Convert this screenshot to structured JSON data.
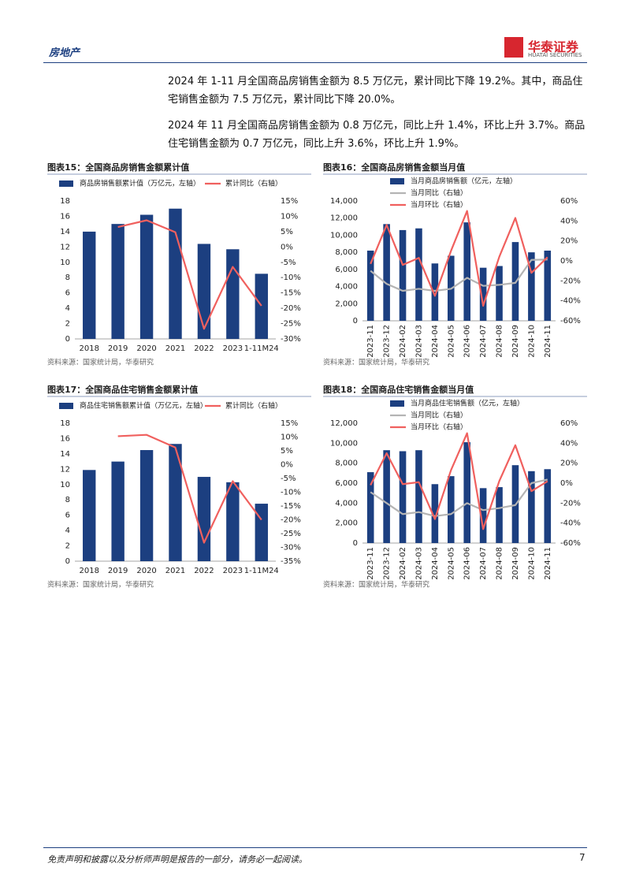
{
  "header": {
    "section": "房地产",
    "brand": "华泰证券",
    "brand_en": "HUATAI SECURITIES"
  },
  "paragraphs": [
    "2024 年 1-11 月全国商品房销售金额为 8.5 万亿元，累计同比下降 19.2%。其中，商品住宅销售金额为 7.5 万亿元，累计同比下降 20.0%。",
    "2024 年 11 月全国商品房销售金额为 0.8 万亿元，同比上升 1.4%，环比上升 3.7%。商品住宅销售金额为 0.7 万亿元，同比上升 3.6%，环比上升 1.9%。"
  ],
  "chart_data": [
    {
      "type": "combo",
      "title": "图表15：全国商品房销售金额累计值",
      "source": "资料来源：国家统计局，华泰研究",
      "rotate_labels": false,
      "categories": [
        "2018",
        "2019",
        "2020",
        "2021",
        "2022",
        "2023",
        "1-11M24"
      ],
      "series": [
        {
          "name": "商品房销售额累计值（万亿元，左轴）",
          "type": "bar",
          "color": "#1c3f80",
          "values": [
            14.0,
            15.0,
            16.2,
            17.0,
            12.4,
            11.7,
            8.5
          ]
        },
        {
          "name": "累计同比（右轴）",
          "type": "line",
          "axis": "y2",
          "color": "#f0605e",
          "values": [
            null,
            6.5,
            8.7,
            4.8,
            -26.7,
            -6.5,
            -19.2
          ]
        }
      ],
      "ylim": [
        0,
        18
      ],
      "yticks": [
        0,
        2,
        4,
        6,
        8,
        10,
        12,
        14,
        16,
        18
      ],
      "y2lim": [
        -30,
        15
      ],
      "y2ticks": [
        {
          "value": -30,
          "label": "-30%"
        },
        {
          "value": -25,
          "label": "-25%"
        },
        {
          "value": -20,
          "label": "-20%"
        },
        {
          "value": -15,
          "label": "-15%"
        },
        {
          "value": -10,
          "label": "-10%"
        },
        {
          "value": -5,
          "label": "-5%"
        },
        {
          "value": 0,
          "label": "0%"
        },
        {
          "value": 5,
          "label": "5%"
        },
        {
          "value": 10,
          "label": "10%"
        },
        {
          "value": 15,
          "label": "15%"
        }
      ]
    },
    {
      "type": "combo",
      "title": "图表16：全国商品房销售金额当月值",
      "source": "资料来源：国家统计局，华泰研究",
      "rotate_labels": true,
      "categories": [
        "2023-11",
        "2023-12",
        "2024-02",
        "2024-03",
        "2024-04",
        "2024-05",
        "2024-06",
        "2024-07",
        "2024-08",
        "2024-09",
        "2024-10",
        "2024-11"
      ],
      "series": [
        {
          "name": "当月商品房销售额（亿元，左轴）",
          "type": "bar",
          "color": "#1c3f80",
          "values": [
            8200,
            11300,
            10600,
            10800,
            6700,
            7600,
            11500,
            6200,
            6400,
            9200,
            8000,
            8200
          ]
        },
        {
          "name": "当月同比（右轴）",
          "type": "line",
          "axis": "y2",
          "color": "#b4b4b4",
          "values": [
            -10,
            -23,
            -30,
            -28,
            -30,
            -28,
            -17,
            -25,
            -24,
            -22,
            1,
            1.4
          ]
        },
        {
          "name": "当月环比（右轴）",
          "type": "line",
          "axis": "y2",
          "color": "#f0605e",
          "values": [
            -3,
            36,
            -4,
            3,
            -35,
            10,
            50,
            -45,
            4,
            43,
            -12,
            3.7
          ]
        }
      ],
      "ylim": [
        0,
        14000
      ],
      "yticks": [
        0,
        {
          "value": 2000,
          "label": "2,000"
        },
        {
          "value": 4000,
          "label": "4,000"
        },
        {
          "value": 6000,
          "label": "6,000"
        },
        {
          "value": 8000,
          "label": "8,000"
        },
        {
          "value": 10000,
          "label": "10,000"
        },
        {
          "value": 12000,
          "label": "12,000"
        },
        {
          "value": 14000,
          "label": "14,000"
        }
      ],
      "y2lim": [
        -60,
        60
      ],
      "y2ticks": [
        {
          "value": -60,
          "label": "-60%"
        },
        {
          "value": -40,
          "label": "-40%"
        },
        {
          "value": -20,
          "label": "-20%"
        },
        {
          "value": 0,
          "label": "0%"
        },
        {
          "value": 20,
          "label": "20%"
        },
        {
          "value": 40,
          "label": "40%"
        },
        {
          "value": 60,
          "label": "60%"
        }
      ]
    },
    {
      "type": "combo",
      "title": "图表17：全国商品住宅销售金额累计值",
      "source": "资料来源：国家统计局，华泰研究",
      "rotate_labels": false,
      "categories": [
        "2018",
        "2019",
        "2020",
        "2021",
        "2022",
        "2023",
        "1-11M24"
      ],
      "series": [
        {
          "name": "商品住宅销售额累计值（万亿元，左轴）",
          "type": "bar",
          "color": "#1c3f80",
          "values": [
            11.9,
            13.0,
            14.5,
            15.3,
            11.0,
            10.3,
            7.5
          ]
        },
        {
          "name": "累计同比（右轴）",
          "type": "line",
          "axis": "y2",
          "color": "#f0605e",
          "values": [
            null,
            10.3,
            10.8,
            6.2,
            -28.3,
            -6.0,
            -20.0
          ]
        }
      ],
      "ylim": [
        0,
        18
      ],
      "yticks": [
        0,
        2,
        4,
        6,
        8,
        10,
        12,
        14,
        16,
        18
      ],
      "y2lim": [
        -35,
        15
      ],
      "y2ticks": [
        {
          "value": -35,
          "label": "-35%"
        },
        {
          "value": -30,
          "label": "-30%"
        },
        {
          "value": -25,
          "label": "-25%"
        },
        {
          "value": -20,
          "label": "-20%"
        },
        {
          "value": -15,
          "label": "-15%"
        },
        {
          "value": -10,
          "label": "-10%"
        },
        {
          "value": -5,
          "label": "-5%"
        },
        {
          "value": 0,
          "label": "0%"
        },
        {
          "value": 5,
          "label": "5%"
        },
        {
          "value": 10,
          "label": "10%"
        },
        {
          "value": 15,
          "label": "15%"
        }
      ]
    },
    {
      "type": "combo",
      "title": "图表18：全国商品住宅销售金额当月值",
      "source": "资料来源：国家统计局，华泰研究",
      "rotate_labels": true,
      "categories": [
        "2023-11",
        "2023-12",
        "2024-02",
        "2024-03",
        "2024-04",
        "2024-05",
        "2024-06",
        "2024-07",
        "2024-08",
        "2024-09",
        "2024-10",
        "2024-11"
      ],
      "series": [
        {
          "name": "当月商品住宅销售额（亿元，左轴）",
          "type": "bar",
          "color": "#1c3f80",
          "values": [
            7100,
            9300,
            9200,
            9300,
            5900,
            6700,
            10100,
            5500,
            5600,
            7800,
            7200,
            7400
          ]
        },
        {
          "name": "当月同比（右轴）",
          "type": "line",
          "axis": "y2",
          "color": "#b4b4b4",
          "values": [
            -9,
            -20,
            -31,
            -29,
            -33,
            -31,
            -20,
            -27,
            -25,
            -22,
            0,
            3.6
          ]
        },
        {
          "name": "当月环比（右轴）",
          "type": "line",
          "axis": "y2",
          "color": "#f0605e",
          "values": [
            -2,
            30,
            -1,
            1,
            -36,
            13,
            50,
            -46,
            2,
            38,
            -8,
            1.9
          ]
        }
      ],
      "ylim": [
        0,
        12000
      ],
      "yticks": [
        0,
        {
          "value": 2000,
          "label": "2,000"
        },
        {
          "value": 4000,
          "label": "4,000"
        },
        {
          "value": 6000,
          "label": "6,000"
        },
        {
          "value": 8000,
          "label": "8,000"
        },
        {
          "value": 10000,
          "label": "10,000"
        },
        {
          "value": 12000,
          "label": "12,000"
        }
      ],
      "y2lim": [
        -60,
        60
      ],
      "y2ticks": [
        {
          "value": -60,
          "label": "-60%"
        },
        {
          "value": -40,
          "label": "-40%"
        },
        {
          "value": -20,
          "label": "-20%"
        },
        {
          "value": 0,
          "label": "0%"
        },
        {
          "value": 20,
          "label": "20%"
        },
        {
          "value": 40,
          "label": "40%"
        },
        {
          "value": 60,
          "label": "60%"
        }
      ]
    }
  ],
  "footer": {
    "disclaimer": "免责声明和披露以及分析师声明是报告的一部分，请务必一起阅读。",
    "page": 7
  }
}
